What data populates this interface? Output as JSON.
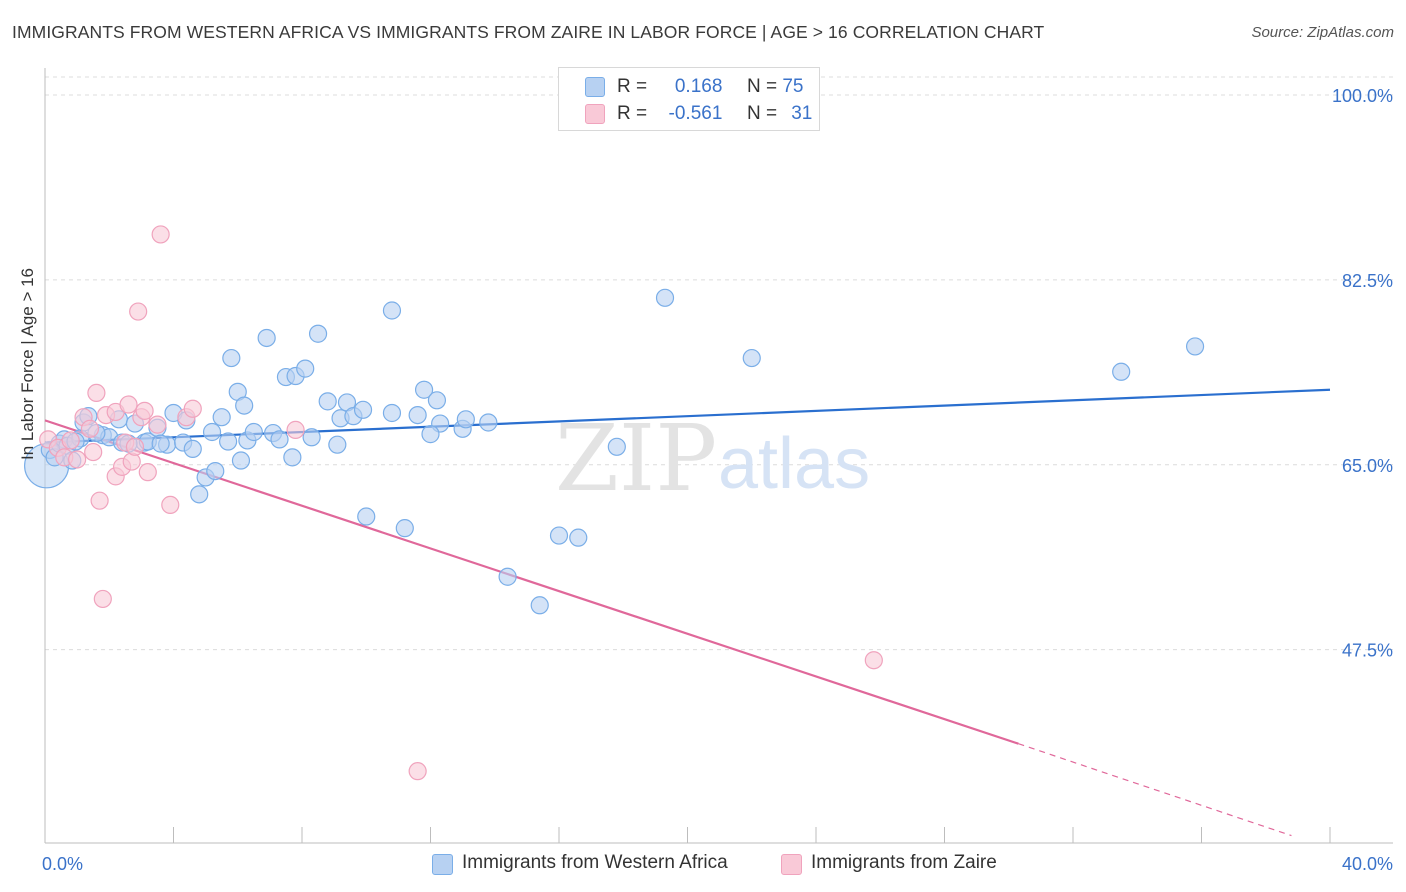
{
  "title": "IMMIGRANTS FROM WESTERN AFRICA VS IMMIGRANTS FROM ZAIRE IN LABOR FORCE | AGE > 16 CORRELATION CHART",
  "source": "Source: ZipAtlas.com",
  "watermark": {
    "zip": "ZIP",
    "atlas": "atlas"
  },
  "legend": {
    "r_label": "R =",
    "n_label": "N =",
    "series": [
      {
        "r": "0.168",
        "n": "75"
      },
      {
        "r": "-0.561",
        "n": "31"
      }
    ]
  },
  "chart_data": {
    "type": "scatter",
    "title": "IMMIGRANTS FROM WESTERN AFRICA VS IMMIGRANTS FROM ZAIRE IN LABOR FORCE | AGE > 16 CORRELATION CHART",
    "xlabel": "",
    "ylabel": "In Labor Force | Age > 16",
    "xlim": [
      0,
      40
    ],
    "ylim": [
      29.2,
      101.7
    ],
    "x_tick_labels": [
      "0.0%",
      "40.0%"
    ],
    "y_ticks": [
      100,
      82.5,
      65,
      47.5
    ],
    "y_tick_labels": [
      "100.0%",
      "82.5%",
      "65.0%",
      "47.5%"
    ],
    "legend_position": "top-center",
    "series": [
      {
        "name": "Immigrants from Western Africa",
        "color": "#7aaee8",
        "fill": "#b7d1f2",
        "line_color": "#2a6fcf",
        "trend": {
          "x": [
            0,
            40
          ],
          "y": [
            67.1,
            72.1
          ]
        },
        "points": [
          [
            0.05,
            64.9
          ],
          [
            0.15,
            66.4
          ],
          [
            0.3,
            65.7
          ],
          [
            0.45,
            67.0
          ],
          [
            0.6,
            67.4
          ],
          [
            0.7,
            66.8
          ],
          [
            0.85,
            65.4
          ],
          [
            1.1,
            67.5
          ],
          [
            1.2,
            69.0
          ],
          [
            1.35,
            69.6
          ],
          [
            1.8,
            67.8
          ],
          [
            2.0,
            67.6
          ],
          [
            2.3,
            69.3
          ],
          [
            2.4,
            67.1
          ],
          [
            2.8,
            68.9
          ],
          [
            3.1,
            67.1
          ],
          [
            3.2,
            67.2
          ],
          [
            3.5,
            68.5
          ],
          [
            3.8,
            66.9
          ],
          [
            4.0,
            69.9
          ],
          [
            4.3,
            67.1
          ],
          [
            4.4,
            69.2
          ],
          [
            4.6,
            66.5
          ],
          [
            4.8,
            62.2
          ],
          [
            5.0,
            63.8
          ],
          [
            5.2,
            68.1
          ],
          [
            5.3,
            64.4
          ],
          [
            5.5,
            69.5
          ],
          [
            5.7,
            67.2
          ],
          [
            5.8,
            75.1
          ],
          [
            6.0,
            71.9
          ],
          [
            6.1,
            65.4
          ],
          [
            6.2,
            70.6
          ],
          [
            6.3,
            67.3
          ],
          [
            6.5,
            68.1
          ],
          [
            6.9,
            77.0
          ],
          [
            7.1,
            68.0
          ],
          [
            7.3,
            67.4
          ],
          [
            7.5,
            73.3
          ],
          [
            7.7,
            65.7
          ],
          [
            7.8,
            73.4
          ],
          [
            8.1,
            74.1
          ],
          [
            8.3,
            67.6
          ],
          [
            8.5,
            77.4
          ],
          [
            8.8,
            71.0
          ],
          [
            9.1,
            66.9
          ],
          [
            9.2,
            69.4
          ],
          [
            9.4,
            70.9
          ],
          [
            9.6,
            69.6
          ],
          [
            9.9,
            70.2
          ],
          [
            10.0,
            60.1
          ],
          [
            10.8,
            79.6
          ],
          [
            10.8,
            69.9
          ],
          [
            11.2,
            59.0
          ],
          [
            11.6,
            69.7
          ],
          [
            11.8,
            72.1
          ],
          [
            12.2,
            71.1
          ],
          [
            12.3,
            68.9
          ],
          [
            13.0,
            68.4
          ],
          [
            13.1,
            69.3
          ],
          [
            13.8,
            69.0
          ],
          [
            14.4,
            54.4
          ],
          [
            15.4,
            51.7
          ],
          [
            16.0,
            58.3
          ],
          [
            16.6,
            58.1
          ],
          [
            17.8,
            66.7
          ],
          [
            19.3,
            80.8
          ],
          [
            22.0,
            75.1
          ],
          [
            33.5,
            73.8
          ],
          [
            35.8,
            76.2
          ],
          [
            2.6,
            67.0
          ],
          [
            3.6,
            67.0
          ],
          [
            1.6,
            68.0
          ],
          [
            0.95,
            67.2
          ],
          [
            12.0,
            67.9
          ]
        ]
      },
      {
        "name": "Immigrants from Zaire",
        "color": "#f0a3bd",
        "fill": "#f9c9d7",
        "line_color": "#e0689a",
        "trend": {
          "x": [
            0,
            30.3
          ],
          "y": [
            69.2,
            38.6
          ]
        },
        "trend_dashed": {
          "x": [
            30.3,
            38.8
          ],
          "y": [
            38.6,
            29.9
          ]
        },
        "points": [
          [
            0.1,
            67.4
          ],
          [
            0.4,
            66.6
          ],
          [
            0.6,
            65.7
          ],
          [
            0.8,
            67.3
          ],
          [
            1.0,
            65.5
          ],
          [
            1.2,
            69.5
          ],
          [
            1.4,
            68.4
          ],
          [
            1.5,
            66.2
          ],
          [
            1.6,
            71.8
          ],
          [
            1.7,
            61.6
          ],
          [
            1.8,
            52.3
          ],
          [
            1.9,
            69.7
          ],
          [
            2.2,
            70.0
          ],
          [
            2.2,
            63.9
          ],
          [
            2.4,
            64.8
          ],
          [
            2.5,
            67.1
          ],
          [
            2.6,
            70.7
          ],
          [
            2.7,
            65.3
          ],
          [
            2.8,
            66.7
          ],
          [
            2.9,
            79.5
          ],
          [
            3.0,
            69.5
          ],
          [
            3.1,
            70.1
          ],
          [
            3.2,
            64.3
          ],
          [
            3.5,
            68.8
          ],
          [
            3.6,
            86.8
          ],
          [
            3.9,
            61.2
          ],
          [
            4.4,
            69.5
          ],
          [
            4.6,
            70.3
          ],
          [
            7.8,
            68.3
          ],
          [
            25.8,
            46.5
          ],
          [
            11.6,
            36.0
          ]
        ]
      }
    ]
  }
}
